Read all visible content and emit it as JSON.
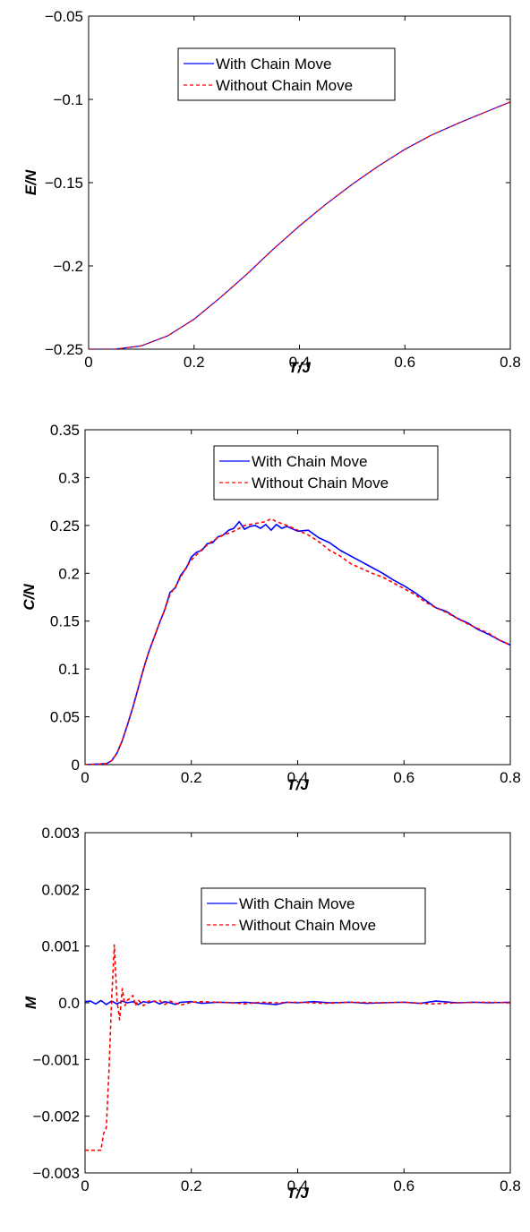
{
  "chart_data": [
    {
      "type": "line",
      "xlabel": "T/J",
      "ylabel": "E/N",
      "xlim": [
        0,
        0.8
      ],
      "ylim": [
        -0.25,
        -0.05
      ],
      "xticks": [
        "0",
        "0.2",
        "0.4",
        "0.6",
        "0.8"
      ],
      "xtick_values": [
        0,
        0.2,
        0.4,
        0.6,
        0.8
      ],
      "yticks": [
        "−0.25",
        "−0.2",
        "−0.15",
        "−0.1",
        "−0.05"
      ],
      "ytick_values": [
        -0.25,
        -0.2,
        -0.15,
        -0.1,
        -0.05
      ],
      "legend_position": "top-center",
      "series": [
        {
          "name": "With Chain Move",
          "color": "#0000ff",
          "style": "solid",
          "x": [
            0,
            0.05,
            0.1,
            0.15,
            0.2,
            0.25,
            0.3,
            0.35,
            0.4,
            0.45,
            0.5,
            0.55,
            0.6,
            0.65,
            0.7,
            0.75,
            0.8
          ],
          "y": [
            -0.25,
            -0.25,
            -0.248,
            -0.242,
            -0.232,
            -0.219,
            -0.205,
            -0.19,
            -0.176,
            -0.163,
            -0.151,
            -0.14,
            -0.13,
            -0.1215,
            -0.1145,
            -0.108,
            -0.1015
          ]
        },
        {
          "name": "Without Chain Move",
          "color": "#ff0000",
          "style": "dashed",
          "x": [
            0,
            0.05,
            0.1,
            0.15,
            0.2,
            0.25,
            0.3,
            0.35,
            0.4,
            0.45,
            0.5,
            0.55,
            0.6,
            0.65,
            0.7,
            0.75,
            0.8
          ],
          "y": [
            -0.25,
            -0.25,
            -0.248,
            -0.242,
            -0.232,
            -0.219,
            -0.205,
            -0.19,
            -0.176,
            -0.163,
            -0.151,
            -0.14,
            -0.13,
            -0.1215,
            -0.1145,
            -0.108,
            -0.1015
          ]
        }
      ]
    },
    {
      "type": "line",
      "xlabel": "T/J",
      "ylabel": "C/N",
      "xlim": [
        0,
        0.8
      ],
      "ylim": [
        0,
        0.35
      ],
      "xticks": [
        "0",
        "0.2",
        "0.4",
        "0.6",
        "0.8"
      ],
      "xtick_values": [
        0,
        0.2,
        0.4,
        0.6,
        0.8
      ],
      "yticks": [
        "0",
        "0.05",
        "0.1",
        "0.15",
        "0.2",
        "0.25",
        "0.3",
        "0.35"
      ],
      "ytick_values": [
        0,
        0.05,
        0.1,
        0.15,
        0.2,
        0.25,
        0.3,
        0.35
      ],
      "legend_position": "top-right",
      "series": [
        {
          "name": "With Chain Move",
          "color": "#0000ff",
          "style": "solid",
          "x": [
            0,
            0.04,
            0.05,
            0.06,
            0.07,
            0.08,
            0.09,
            0.1,
            0.11,
            0.12,
            0.13,
            0.14,
            0.15,
            0.16,
            0.17,
            0.18,
            0.19,
            0.2,
            0.21,
            0.22,
            0.23,
            0.24,
            0.25,
            0.26,
            0.27,
            0.28,
            0.29,
            0.3,
            0.31,
            0.32,
            0.33,
            0.34,
            0.35,
            0.36,
            0.37,
            0.38,
            0.4,
            0.42,
            0.44,
            0.46,
            0.48,
            0.5,
            0.52,
            0.54,
            0.56,
            0.58,
            0.6,
            0.62,
            0.64,
            0.66,
            0.68,
            0.7,
            0.72,
            0.74,
            0.76,
            0.78,
            0.8
          ],
          "y": [
            0,
            0.001,
            0.004,
            0.012,
            0.025,
            0.042,
            0.06,
            0.08,
            0.1,
            0.118,
            0.133,
            0.148,
            0.162,
            0.18,
            0.185,
            0.198,
            0.205,
            0.217,
            0.222,
            0.224,
            0.231,
            0.232,
            0.238,
            0.24,
            0.245,
            0.247,
            0.254,
            0.246,
            0.249,
            0.25,
            0.247,
            0.251,
            0.245,
            0.251,
            0.247,
            0.249,
            0.244,
            0.245,
            0.237,
            0.232,
            0.224,
            0.218,
            0.212,
            0.206,
            0.2,
            0.193,
            0.187,
            0.18,
            0.172,
            0.164,
            0.16,
            0.153,
            0.148,
            0.141,
            0.136,
            0.13,
            0.125
          ]
        },
        {
          "name": "Without Chain Move",
          "color": "#ff0000",
          "style": "dashed",
          "x": [
            0,
            0.04,
            0.05,
            0.06,
            0.07,
            0.08,
            0.09,
            0.1,
            0.11,
            0.12,
            0.13,
            0.14,
            0.15,
            0.16,
            0.17,
            0.18,
            0.19,
            0.2,
            0.22,
            0.24,
            0.26,
            0.28,
            0.3,
            0.32,
            0.34,
            0.35,
            0.36,
            0.38,
            0.4,
            0.42,
            0.44,
            0.46,
            0.48,
            0.5,
            0.52,
            0.54,
            0.56,
            0.58,
            0.6,
            0.62,
            0.64,
            0.66,
            0.68,
            0.7,
            0.72,
            0.74,
            0.76,
            0.78,
            0.8
          ],
          "y": [
            0,
            0.001,
            0.004,
            0.012,
            0.025,
            0.042,
            0.06,
            0.08,
            0.1,
            0.118,
            0.133,
            0.148,
            0.162,
            0.178,
            0.186,
            0.196,
            0.206,
            0.214,
            0.225,
            0.234,
            0.24,
            0.244,
            0.25,
            0.252,
            0.254,
            0.257,
            0.254,
            0.25,
            0.245,
            0.24,
            0.233,
            0.224,
            0.218,
            0.21,
            0.205,
            0.2,
            0.196,
            0.19,
            0.184,
            0.178,
            0.17,
            0.164,
            0.159,
            0.153,
            0.147,
            0.142,
            0.137,
            0.13,
            0.125
          ]
        }
      ]
    },
    {
      "type": "line",
      "xlabel": "T/J",
      "ylabel": "M",
      "xlim": [
        0,
        0.8
      ],
      "ylim": [
        -0.003,
        0.003
      ],
      "xticks": [
        "0",
        "0.2",
        "0.4",
        "0.6",
        "0.8"
      ],
      "xtick_values": [
        0,
        0.2,
        0.4,
        0.6,
        0.8
      ],
      "yticks": [
        "−0.003",
        "−0.002",
        "−0.001",
        "0.0",
        "0.001",
        "0.002",
        "0.003"
      ],
      "ytick_values": [
        -0.003,
        -0.002,
        -0.001,
        0,
        0.001,
        0.002,
        0.003
      ],
      "legend_position": "top-center",
      "series": [
        {
          "name": "With Chain Move",
          "color": "#0000ff",
          "style": "solid",
          "x": [
            0,
            0.01,
            0.02,
            0.03,
            0.04,
            0.05,
            0.06,
            0.07,
            0.08,
            0.09,
            0.1,
            0.11,
            0.12,
            0.13,
            0.14,
            0.15,
            0.16,
            0.17,
            0.18,
            0.2,
            0.22,
            0.25,
            0.28,
            0.3,
            0.33,
            0.36,
            0.38,
            0.4,
            0.43,
            0.46,
            0.5,
            0.53,
            0.56,
            0.6,
            0.63,
            0.66,
            0.7,
            0.73,
            0.76,
            0.8
          ],
          "y": [
            2e-05,
            3e-05,
            -2e-05,
            4e-05,
            -3e-05,
            3e-05,
            -2e-05,
            3e-05,
            0,
            2e-05,
            -3e-05,
            2e-05,
            0,
            3e-05,
            -2e-05,
            2e-05,
            0,
            -3e-05,
            1e-05,
            2e-05,
            -1e-05,
            1e-05,
            0,
            1e-05,
            -1e-05,
            -3e-05,
            1e-05,
            0,
            2e-05,
            0,
            1e-05,
            -1e-05,
            0,
            1e-05,
            -1e-05,
            3e-05,
            0,
            1e-05,
            0,
            1e-05
          ]
        },
        {
          "name": "Without Chain Move",
          "color": "#ff0000",
          "style": "dashed",
          "x": [
            0,
            0.01,
            0.02,
            0.03,
            0.035,
            0.04,
            0.045,
            0.05,
            0.055,
            0.06,
            0.065,
            0.07,
            0.075,
            0.08,
            0.085,
            0.09,
            0.095,
            0.1,
            0.11,
            0.12,
            0.13,
            0.14,
            0.15,
            0.16,
            0.18,
            0.2,
            0.22,
            0.25,
            0.28,
            0.3,
            0.33,
            0.36,
            0.4,
            0.45,
            0.5,
            0.55,
            0.6,
            0.65,
            0.7,
            0.75,
            0.8
          ],
          "y": [
            -0.0026,
            -0.0026,
            -0.0026,
            -0.0026,
            -0.0023,
            -0.0022,
            -0.0012,
            5e-05,
            0.00102,
            5e-05,
            -0.0003,
            0.00025,
            -5e-05,
            5e-05,
            8e-05,
            0.00013,
            -5e-05,
            5e-05,
            -5e-05,
            3e-05,
            2e-05,
            4e-05,
            -3e-05,
            3e-05,
            -4e-05,
            1e-05,
            2e-05,
            1e-05,
            0,
            -2e-05,
            1e-05,
            0,
            1e-05,
            -1e-05,
            1e-05,
            0,
            1e-05,
            -2e-05,
            0,
            1e-05,
            0
          ]
        }
      ]
    }
  ]
}
